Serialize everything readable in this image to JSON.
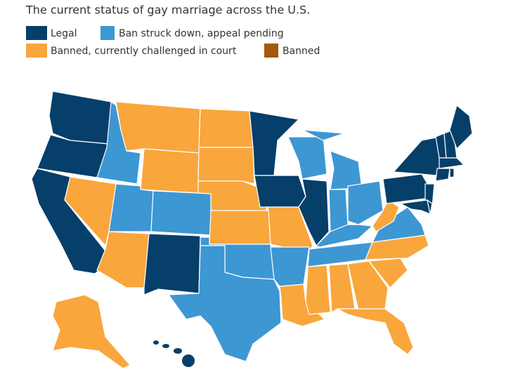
{
  "title": "The current status of gay marriage across the U.S.",
  "legend": [
    {
      "label": "Legal",
      "color": "#063f6a"
    },
    {
      "label": "Ban struck down, appeal pending",
      "color": "#3d97d3"
    },
    {
      "label": "Banned, currently challenged in court",
      "color": "#f9a63c"
    },
    {
      "label": "Banned",
      "color": "#a3590b"
    }
  ]
}
